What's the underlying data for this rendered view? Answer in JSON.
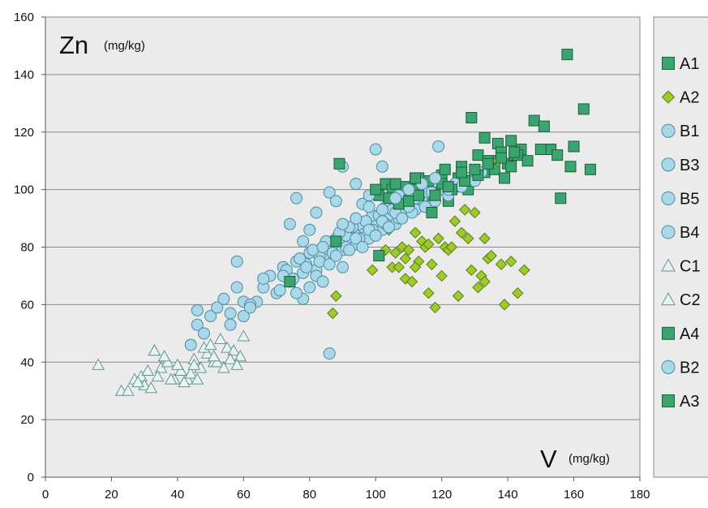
{
  "chart_data": {
    "type": "scatter",
    "title": "",
    "xlabel": "V",
    "xunit": "(mg/kg)",
    "ylabel": "Zn",
    "yunit": "(mg/kg)",
    "xlim": [
      0,
      180
    ],
    "ylim": [
      0,
      160
    ],
    "xticks": [
      "0",
      "20",
      "40",
      "60",
      "80",
      "100",
      "120",
      "140",
      "160",
      "180"
    ],
    "yticks": [
      "0",
      "20",
      "40",
      "60",
      "80",
      "100",
      "120",
      "140",
      "160"
    ],
    "grid": "horizontal",
    "legend_position": "right",
    "colors": {
      "plot_bg": "#ebebeb",
      "legend_bg": "#ebebeb",
      "square": "#3aa56f",
      "square_edge": "#1c5e3a",
      "diamond": "#9ccb2e",
      "diamond_edge": "#5c7c12",
      "circle": "#a9d8e9",
      "circle_edge": "#4d8aa3",
      "triangle": "#e4f6f4",
      "triangle_edge": "#6d8f8b"
    },
    "series": [
      {
        "name": "A1",
        "marker": "square",
        "x": [
          101,
          103,
          105,
          107,
          109,
          110,
          112,
          114,
          116,
          118,
          120,
          122,
          124,
          126,
          128,
          130,
          131,
          133,
          135,
          136,
          138,
          140,
          142,
          144,
          148,
          151,
          153,
          156,
          158,
          159,
          163,
          165,
          129,
          127,
          125,
          121,
          117,
          113,
          111,
          133,
          137,
          139,
          141,
          143
        ],
        "y": [
          98,
          102,
          100,
          96,
          101,
          99,
          104,
          97,
          103,
          99,
          105,
          96,
          101,
          108,
          100,
          104,
          112,
          106,
          110,
          107,
          113,
          109,
          112,
          114,
          124,
          122,
          114,
          97,
          147,
          108,
          128,
          107,
          125,
          103,
          104,
          107,
          98,
          104,
          100,
          118,
          116,
          104,
          108,
          112
        ]
      },
      {
        "name": "A2",
        "marker": "diamond",
        "x": [
          87,
          88,
          97,
          99,
          103,
          105,
          107,
          108,
          109,
          110,
          111,
          112,
          113,
          114,
          115,
          116,
          117,
          118,
          119,
          120,
          121,
          122,
          124,
          125,
          127,
          128,
          129,
          130,
          131,
          132,
          133,
          134,
          135,
          137,
          138,
          139,
          141,
          143,
          145,
          104,
          106,
          109,
          112,
          116,
          123,
          126,
          133
        ],
        "y": [
          57,
          63,
          96,
          72,
          79,
          73,
          73,
          80,
          69,
          79,
          68,
          85,
          75,
          82,
          80,
          64,
          74,
          59,
          83,
          70,
          80,
          79,
          89,
          63,
          93,
          83,
          72,
          92,
          66,
          70,
          83,
          76,
          77,
          110,
          74,
          60,
          75,
          64,
          72,
          86,
          78,
          76,
          73,
          81,
          80,
          85,
          68
        ]
      },
      {
        "name": "B1",
        "marker": "circle",
        "x": [
          64,
          66,
          68,
          70,
          72,
          74,
          76,
          78,
          80,
          82,
          84,
          86,
          88,
          90,
          92,
          94,
          96,
          98,
          100,
          102,
          104,
          106,
          108,
          110,
          112,
          114,
          116,
          118,
          120,
          122,
          124,
          126,
          128,
          130,
          132,
          71,
          75,
          79,
          83,
          87,
          91,
          95,
          99,
          103,
          107
        ],
        "y": [
          61,
          66,
          70,
          64,
          73,
          68,
          75,
          71,
          78,
          72,
          80,
          76,
          83,
          79,
          85,
          81,
          87,
          83,
          89,
          86,
          90,
          88,
          92,
          95,
          93,
          97,
          99,
          96,
          100,
          98,
          102,
          101,
          104,
          103,
          106,
          65,
          69,
          74,
          77,
          81,
          84,
          88,
          91,
          94,
          98
        ]
      },
      {
        "name": "B3",
        "marker": "circle",
        "x": [
          73,
          75,
          77,
          79,
          81,
          83,
          85,
          87,
          89,
          91,
          93,
          95,
          97,
          99,
          101,
          103,
          105,
          107,
          109,
          111,
          113,
          115,
          117,
          119
        ],
        "y": [
          72,
          69,
          76,
          73,
          79,
          75,
          82,
          78,
          85,
          80,
          87,
          83,
          89,
          86,
          91,
          88,
          93,
          90,
          95,
          92,
          97,
          94,
          99,
          115
        ]
      },
      {
        "name": "B5",
        "marker": "circle",
        "x": [
          44,
          46,
          48,
          50,
          52,
          54,
          56,
          58,
          60,
          62,
          74,
          76,
          78,
          80,
          82,
          84,
          86,
          88,
          90,
          92,
          94,
          96,
          98,
          100,
          102
        ],
        "y": [
          46,
          53,
          50,
          56,
          59,
          62,
          57,
          75,
          61,
          60,
          88,
          97,
          82,
          86,
          92,
          80,
          99,
          96,
          108,
          87,
          102,
          95,
          98,
          114,
          108
        ]
      },
      {
        "name": "B4",
        "marker": "circle",
        "x": [
          78,
          80,
          82,
          84,
          86,
          88,
          90,
          92,
          94,
          96,
          98,
          100,
          102,
          104,
          106,
          108,
          110,
          112,
          76,
          72
        ],
        "y": [
          62,
          66,
          70,
          68,
          74,
          77,
          73,
          79,
          83,
          80,
          86,
          84,
          89,
          87,
          92,
          90,
          94,
          97,
          64,
          70
        ]
      },
      {
        "name": "C1",
        "marker": "triangle",
        "x": [
          16,
          23,
          25,
          27,
          29,
          31,
          33,
          35,
          37,
          39,
          41,
          43,
          45,
          47,
          49,
          51,
          53,
          55,
          57,
          59
        ],
        "y": [
          39,
          30,
          30,
          34,
          35,
          37,
          44,
          38,
          40,
          34,
          37,
          34,
          41,
          38,
          43,
          40,
          48,
          45,
          44,
          42
        ]
      },
      {
        "name": "C2",
        "marker": "triangle",
        "x": [
          30,
          32,
          34,
          36,
          38,
          40,
          42,
          44,
          46,
          48,
          50,
          52,
          54,
          56,
          58,
          60,
          28,
          33,
          45,
          51
        ],
        "y": [
          32,
          31,
          35,
          42,
          34,
          39,
          33,
          36,
          34,
          45,
          46,
          40,
          38,
          41,
          39,
          49,
          33,
          44,
          39,
          42
        ]
      },
      {
        "name": "A4",
        "marker": "square",
        "x": [
          74,
          88,
          89,
          101,
          104,
          107,
          110,
          113,
          117,
          120,
          123,
          127,
          131,
          134,
          138,
          141
        ],
        "y": [
          68,
          82,
          109,
          77,
          97,
          95,
          96,
          98,
          92,
          102,
          100,
          103,
          105,
          110,
          113,
          117
        ]
      },
      {
        "name": "B2",
        "marker": "circle",
        "x": [
          46,
          56,
          58,
          60,
          62,
          66,
          86,
          90,
          94,
          98,
          102,
          106,
          110,
          114,
          118,
          122
        ],
        "y": [
          58,
          53,
          66,
          56,
          59,
          69,
          43,
          88,
          90,
          94,
          93,
          97,
          100,
          102,
          104,
          100
        ]
      },
      {
        "name": "A3",
        "marker": "square",
        "x": [
          100,
          106,
          112,
          118,
          122,
          126,
          130,
          134,
          138,
          142,
          146,
          150,
          155,
          160
        ],
        "y": [
          100,
          102,
          104,
          98,
          101,
          106,
          107,
          109,
          111,
          113,
          110,
          114,
          112,
          115
        ]
      }
    ]
  }
}
